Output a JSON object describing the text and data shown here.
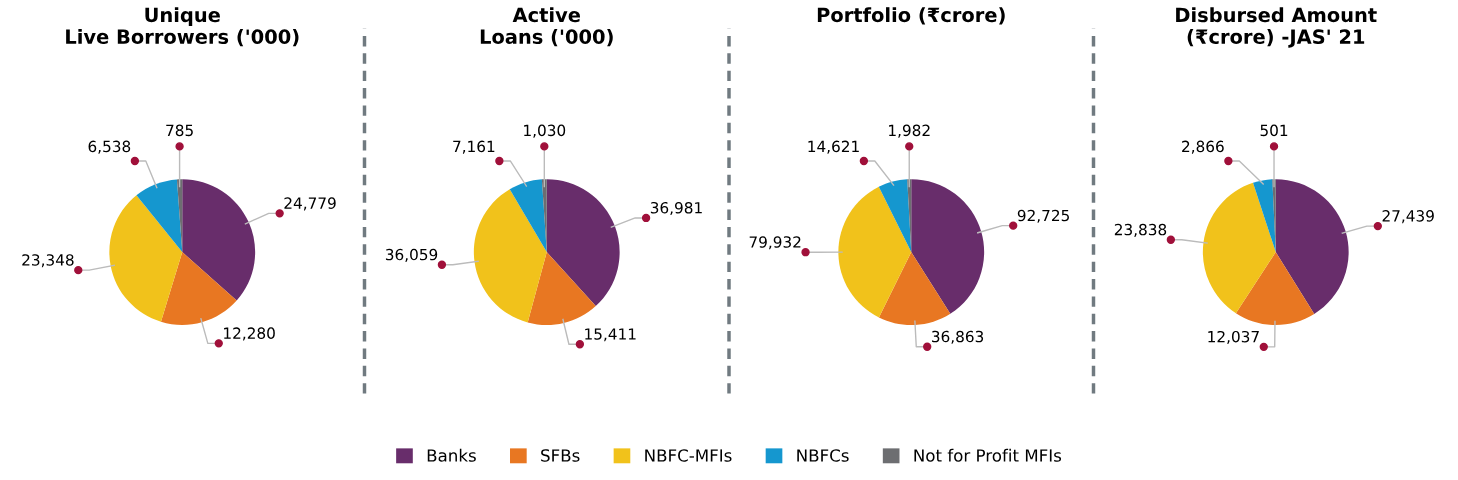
{
  "chart_data": [
    {
      "type": "pie",
      "title": "Unique\nLive Borrowers ('000)",
      "categories": [
        "Banks",
        "SFBs",
        "NBFC-MFIs",
        "NBFCs",
        "Not for Profit MFIs"
      ],
      "values": [
        24779,
        12280,
        23348,
        6538,
        785
      ],
      "value_labels": [
        "24,779",
        "12,280",
        "23,348",
        "6,538",
        "785"
      ],
      "colors": [
        "#682d6b",
        "#e87722",
        "#f1c21b",
        "#1597cf",
        "#6d6e71"
      ],
      "legend": "bottom"
    },
    {
      "type": "pie",
      "title": "Active\nLoans ('000)",
      "values": [
        36981,
        15411,
        36059,
        7161,
        1030
      ],
      "value_labels": [
        "36,981",
        "15,411",
        "36,059",
        "7,161",
        "1,030"
      ],
      "colors": [
        "#682d6b",
        "#e87722",
        "#f1c21b",
        "#1597cf",
        "#6d6e71"
      ]
    },
    {
      "type": "pie",
      "title": "Portfolio (₹crore)",
      "values": [
        92725,
        36863,
        79932,
        14621,
        1982
      ],
      "value_labels": [
        "92,725",
        "36,863",
        "79,932",
        "14,621",
        "1,982"
      ],
      "colors": [
        "#682d6b",
        "#e87722",
        "#f1c21b",
        "#1597cf",
        "#6d6e71"
      ]
    },
    {
      "type": "pie",
      "title": "Disbursed Amount\n(₹crore) -JAS' 21",
      "values": [
        27439,
        12037,
        23838,
        2866,
        501
      ],
      "value_labels": [
        "27,439",
        "12,037",
        "23,838",
        "2,866",
        "501"
      ],
      "colors": [
        "#682d6b",
        "#e87722",
        "#f1c21b",
        "#1597cf",
        "#6d6e71"
      ]
    }
  ]
}
